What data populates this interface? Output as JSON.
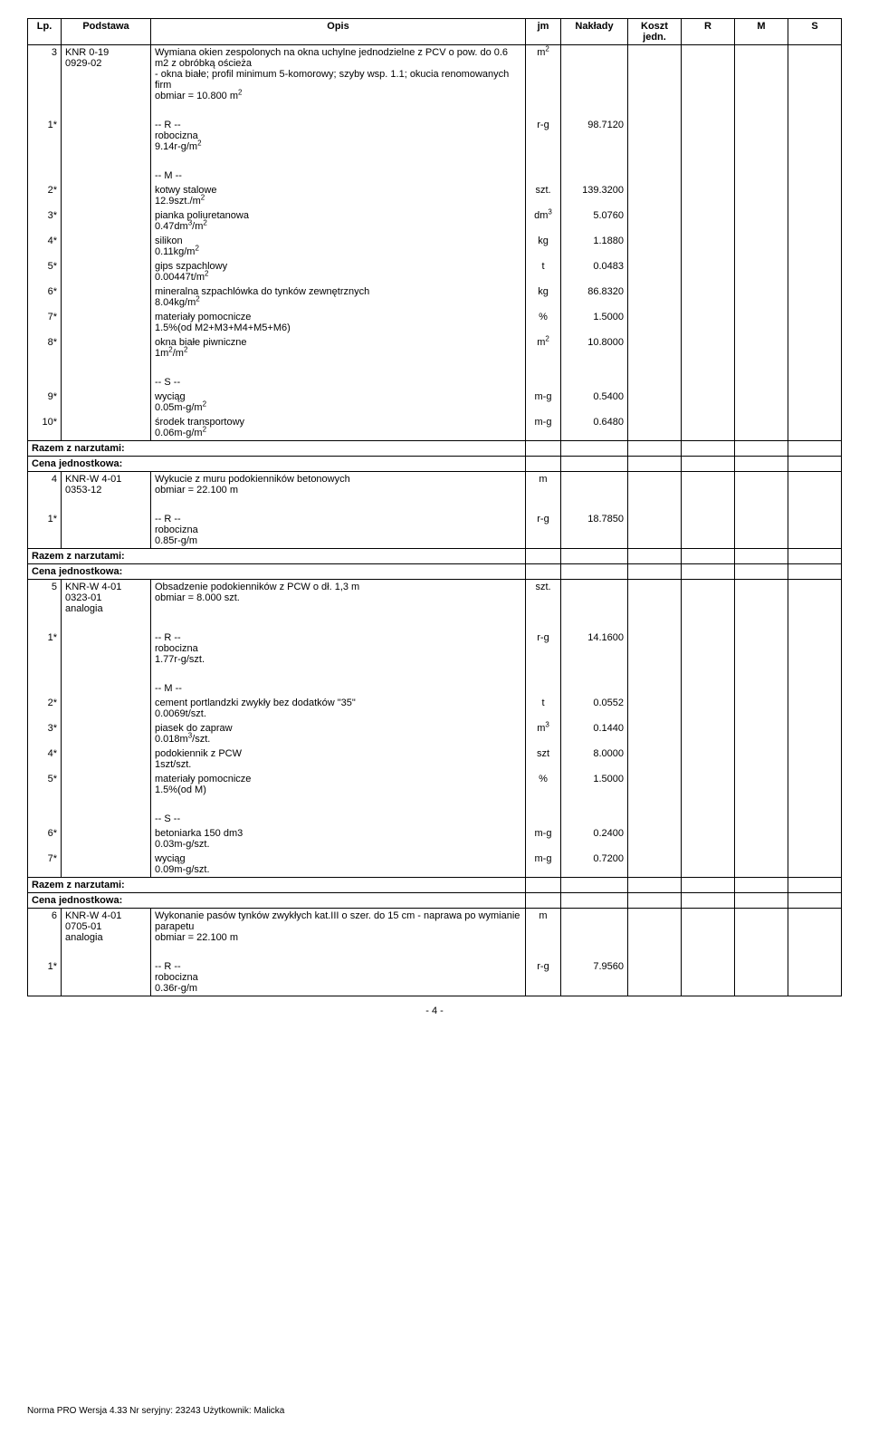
{
  "headers": {
    "lp": "Lp.",
    "podstawa": "Podstawa",
    "opis": "Opis",
    "jm": "jm",
    "naklady": "Nakłady",
    "koszt": "Koszt jedn.",
    "r": "R",
    "m": "M",
    "s": "S"
  },
  "rows": [
    {
      "lp": "3",
      "podstawa": "KNR 0-19\n0929-02",
      "opis": "Wymiana okien zespolonych na okna uchylne jednodzielne z PCV o pow. do 0.6 m2 z obróbką ościeża\n- okna białe; profil minimum 5-komorowy; szyby wsp. 1.1; okucia renomowanych firm\nobmiar  =  10.800 m²",
      "jm": "m²",
      "naklady": "",
      "top": true,
      "sec_start": true
    },
    {
      "opis_blank": true
    },
    {
      "lp": "1*",
      "opis": "-- R --\nrobocizna\n9.14r-g/m²",
      "jm": "r-g",
      "naklady": "98.7120"
    },
    {
      "opis_blank": true
    },
    {
      "opis": "-- M --"
    },
    {
      "lp": "2*",
      "opis": "kotwy stalowe\n12.9szt./m²",
      "jm": "szt.",
      "naklady": "139.3200"
    },
    {
      "lp": "3*",
      "opis": "pianka poliuretanowa\n0.47dm³/m²",
      "jm": "dm³",
      "naklady": "5.0760"
    },
    {
      "lp": "4*",
      "opis": "silikon\n0.11kg/m²",
      "jm": "kg",
      "naklady": "1.1880"
    },
    {
      "lp": "5*",
      "opis": "gips szpachlowy\n0.00447t/m²",
      "jm": "t",
      "naklady": "0.0483"
    },
    {
      "lp": "6*",
      "opis": "mineralna szpachlówka do tynków zewnętrznych\n8.04kg/m²",
      "jm": "kg",
      "naklady": "86.8320"
    },
    {
      "lp": "7*",
      "opis": "materiały pomocnicze\n1.5%(od M2+M3+M4+M5+M6)",
      "jm": "%",
      "naklady": "1.5000"
    },
    {
      "lp": "8*",
      "opis": "okna białe piwniczne\n1m²/m²",
      "jm": "m²",
      "naklady": "10.8000"
    },
    {
      "opis_blank": true
    },
    {
      "opis": "-- S --"
    },
    {
      "lp": "9*",
      "opis": "wyciąg\n0.05m-g/m²",
      "jm": "m-g",
      "naklady": "0.5400"
    },
    {
      "lp": "10*",
      "opis": "środek transportowy\n0.06m-g/m²",
      "jm": "m-g",
      "naklady": "0.6480",
      "sec_end": true
    },
    {
      "razem": true
    },
    {
      "cena": true
    },
    {
      "lp": "4",
      "podstawa": "KNR-W 4-01\n0353-12",
      "opis": "Wykucie z muru podokienników betonowych\nobmiar  =  22.100 m",
      "jm": "m",
      "naklady": "",
      "top": true,
      "sec_start": true
    },
    {
      "opis_blank": true
    },
    {
      "lp": "1*",
      "opis": "-- R --\nrobocizna\n0.85r-g/m",
      "jm": "r-g",
      "naklady": "18.7850",
      "sec_end": true
    },
    {
      "razem": true
    },
    {
      "cena": true
    },
    {
      "lp": "5",
      "podstawa": "KNR-W 4-01\n0323-01\nanalogia",
      "opis": "Obsadzenie podokienników z PCW o dł. 1,3 m\nobmiar  =  8.000 szt.",
      "jm": "szt.",
      "naklady": "",
      "top": true,
      "sec_start": true
    },
    {
      "opis_blank": true
    },
    {
      "lp": "1*",
      "opis": "-- R --\nrobocizna\n1.77r-g/szt.",
      "jm": "r-g",
      "naklady": "14.1600"
    },
    {
      "opis_blank": true
    },
    {
      "opis": "-- M --"
    },
    {
      "lp": "2*",
      "opis": "cement portlandzki zwykły bez dodatków \"35\"\n0.0069t/szt.",
      "jm": "t",
      "naklady": "0.0552"
    },
    {
      "lp": "3*",
      "opis": "piasek do zapraw\n0.018m³/szt.",
      "jm": "m³",
      "naklady": "0.1440"
    },
    {
      "lp": "4*",
      "opis": "podokiennik z PCW\n1szt/szt.",
      "jm": "szt",
      "naklady": "8.0000"
    },
    {
      "lp": "5*",
      "opis": "materiały pomocnicze\n1.5%(od M)",
      "jm": "%",
      "naklady": "1.5000"
    },
    {
      "opis_blank": true
    },
    {
      "opis": "-- S --"
    },
    {
      "lp": "6*",
      "opis": "betoniarka 150 dm3\n0.03m-g/szt.",
      "jm": "m-g",
      "naklady": "0.2400"
    },
    {
      "lp": "7*",
      "opis": "wyciąg\n0.09m-g/szt.",
      "jm": "m-g",
      "naklady": "0.7200",
      "sec_end": true
    },
    {
      "razem": true
    },
    {
      "cena": true
    },
    {
      "lp": "6",
      "podstawa": "KNR-W 4-01\n0705-01\nanalogia",
      "opis": "Wykonanie pasów tynków zwykłych kat.III o szer. do 15 cm  - naprawa po wymianie parapetu\nobmiar  =  22.100 m",
      "jm": "m",
      "naklady": "",
      "top": true,
      "sec_start": true
    },
    {
      "opis_blank": true
    },
    {
      "lp": "1*",
      "opis": "-- R --\nrobocizna\n0.36r-g/m",
      "jm": "r-g",
      "naklady": "7.9560",
      "sec_end": true
    }
  ],
  "labels": {
    "razem": "Razem z narzutami:",
    "cena": "Cena jednostkowa:"
  },
  "page_number": "- 4 -",
  "footer": "Norma PRO Wersja 4.33 Nr seryjny: 23243 Użytkownik: Malicka"
}
